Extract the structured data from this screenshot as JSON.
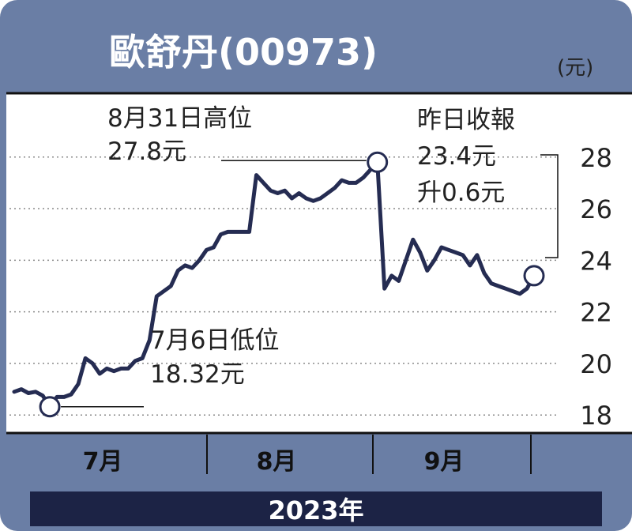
{
  "title": "歐舒丹(00973)",
  "unit": "(元)",
  "footer_year": "2023年",
  "colors": {
    "frame": "#6a7ea5",
    "band": "#1c2345",
    "line": "#252c52",
    "grid": "#8a8a8a",
    "plot_bg": "#ffffff"
  },
  "annotations": {
    "high": {
      "line1": "8月31日高位",
      "line2": "27.8元"
    },
    "low": {
      "line1": "7月6日低位",
      "line2": "18.32元"
    },
    "latest": {
      "line1": "昨日收報",
      "line2": "23.4元",
      "line3": "升0.6元"
    }
  },
  "chart_data": {
    "type": "line",
    "title": "歐舒丹(00973)",
    "ylabel": "(元)",
    "ylim": [
      17.7,
      29.8
    ],
    "yticks": [
      18,
      20,
      22,
      24,
      26,
      28
    ],
    "grid": true,
    "months": [
      {
        "label": "7月",
        "x": 9
      },
      {
        "label": "8月",
        "x": 42
      },
      {
        "label": "9月",
        "x": 73
      }
    ],
    "xlim": [
      0,
      95
    ],
    "month_boundaries": [
      28.5,
      58.5,
      86.5
    ],
    "points": [
      [
        0,
        18.9
      ],
      [
        1,
        19.0
      ],
      [
        2,
        18.85
      ],
      [
        3,
        18.9
      ],
      [
        4,
        18.75
      ],
      [
        5,
        18.32
      ],
      [
        6,
        18.7
      ],
      [
        7,
        18.7
      ],
      [
        8,
        18.8
      ],
      [
        9,
        19.2
      ],
      [
        10,
        20.2
      ],
      [
        11,
        20.0
      ],
      [
        12,
        19.6
      ],
      [
        13,
        19.8
      ],
      [
        14,
        19.7
      ],
      [
        15,
        19.8
      ],
      [
        16,
        19.8
      ],
      [
        17,
        20.1
      ],
      [
        18,
        20.2
      ],
      [
        19,
        20.9
      ],
      [
        20,
        22.6
      ],
      [
        21,
        22.8
      ],
      [
        22,
        23.0
      ],
      [
        23,
        23.6
      ],
      [
        24,
        23.8
      ],
      [
        25,
        23.7
      ],
      [
        26,
        24.0
      ],
      [
        27,
        24.4
      ],
      [
        28,
        24.5
      ],
      [
        29,
        25.0
      ],
      [
        30,
        25.1
      ],
      [
        31,
        25.1
      ],
      [
        32,
        25.1
      ],
      [
        33,
        25.1
      ],
      [
        34,
        27.3
      ],
      [
        35,
        27.0
      ],
      [
        36,
        26.7
      ],
      [
        37,
        26.6
      ],
      [
        38,
        26.7
      ],
      [
        39,
        26.4
      ],
      [
        40,
        26.6
      ],
      [
        41,
        26.4
      ],
      [
        42,
        26.3
      ],
      [
        43,
        26.4
      ],
      [
        44,
        26.6
      ],
      [
        45,
        26.8
      ],
      [
        46,
        27.1
      ],
      [
        47,
        27.0
      ],
      [
        48,
        27.0
      ],
      [
        49,
        27.2
      ],
      [
        50,
        27.5
      ],
      [
        51,
        27.8
      ],
      [
        52,
        22.9
      ],
      [
        53,
        23.4
      ],
      [
        54,
        23.2
      ],
      [
        55,
        24.0
      ],
      [
        56,
        24.8
      ],
      [
        57,
        24.3
      ],
      [
        58,
        23.6
      ],
      [
        59,
        24.0
      ],
      [
        60,
        24.5
      ],
      [
        61,
        24.4
      ],
      [
        62,
        24.3
      ],
      [
        63,
        24.2
      ],
      [
        64,
        23.8
      ],
      [
        65,
        24.2
      ],
      [
        66,
        23.5
      ],
      [
        67,
        23.1
      ],
      [
        68,
        23.0
      ],
      [
        69,
        22.9
      ],
      [
        70,
        22.8
      ],
      [
        71,
        22.7
      ],
      [
        72,
        22.9
      ],
      [
        73,
        23.4
      ]
    ],
    "markers": [
      {
        "label": "low",
        "x": 5,
        "y": 18.32
      },
      {
        "label": "high",
        "x": 51,
        "y": 27.8
      },
      {
        "label": "latest",
        "x": 73,
        "y": 23.4
      }
    ]
  }
}
